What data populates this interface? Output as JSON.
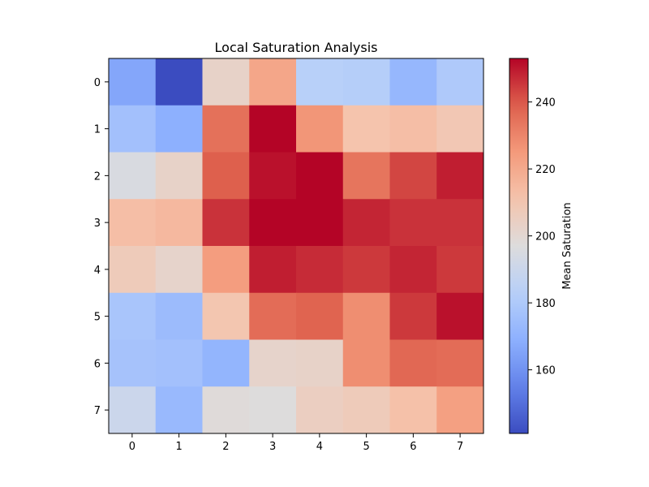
{
  "chart_data": {
    "type": "heatmap",
    "title": "Local Saturation Analysis",
    "x_ticks": [
      "0",
      "1",
      "2",
      "3",
      "4",
      "5",
      "6",
      "7"
    ],
    "y_ticks": [
      "0",
      "1",
      "2",
      "3",
      "4",
      "5",
      "6",
      "7"
    ],
    "values": [
      [
        166,
        141,
        203,
        221,
        183,
        182,
        172,
        180
      ],
      [
        176,
        169,
        235,
        253,
        226,
        211,
        213,
        209
      ],
      [
        195,
        203,
        239,
        251,
        253,
        234,
        243,
        249
      ],
      [
        213,
        215,
        246,
        253,
        253,
        248,
        246,
        246
      ],
      [
        207,
        202,
        224,
        249,
        247,
        245,
        248,
        245
      ],
      [
        178,
        174,
        210,
        236,
        238,
        228,
        245,
        251
      ],
      [
        177,
        176,
        171,
        202,
        203,
        228,
        237,
        236
      ],
      [
        190,
        173,
        198,
        197,
        205,
        207,
        212,
        223
      ]
    ],
    "colormap": "coolwarm",
    "vmin": 141,
    "vmax": 253,
    "colorbar": {
      "label": "Mean Saturation",
      "ticks": [
        160,
        180,
        200,
        220,
        240
      ]
    }
  }
}
